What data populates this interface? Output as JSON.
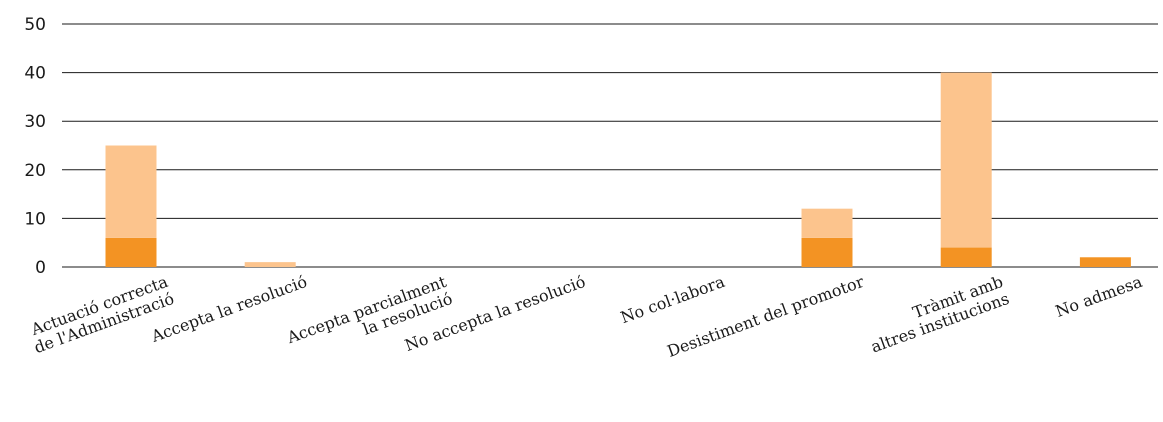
{
  "chart_data": {
    "type": "bar",
    "stacked": true,
    "categories": [
      [
        "Actuació correcta",
        "de l'Administració"
      ],
      [
        "Accepta la resolució"
      ],
      [
        "Accepta parcialment",
        "la resolució"
      ],
      [
        "No accepta la resolució"
      ],
      [
        "No col·labora"
      ],
      [
        "Desistiment del promotor"
      ],
      [
        "Tràmit amb",
        "altres institucions"
      ],
      [
        "No admesa"
      ]
    ],
    "series": [
      {
        "values": [
          6,
          0,
          0,
          0,
          0,
          6,
          4,
          2
        ],
        "color": "#f39323"
      },
      {
        "values": [
          19,
          1,
          0,
          0,
          0,
          6,
          36,
          0
        ],
        "color": "#fcc48d"
      }
    ],
    "ylim": [
      0,
      50
    ],
    "yticks": [
      0,
      10,
      20,
      30,
      40,
      50
    ],
    "ytick_labels": [
      "0",
      "10",
      "20",
      "30",
      "40",
      "50"
    ],
    "grid": true,
    "gridline_color": "#1a1a1a",
    "legend": "none",
    "title": "",
    "xlabel": "",
    "ylabel": ""
  }
}
